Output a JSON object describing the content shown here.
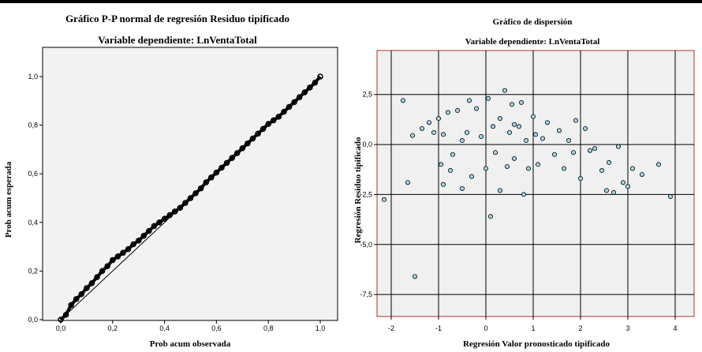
{
  "chart_data": [
    {
      "type": "line",
      "title": "Gráfico P-P normal de regresión Residuo tipificado",
      "subtitle": "Variable dependiente: LnVentaTotal",
      "xlabel": "Prob acum observada",
      "ylabel": "Prob acum esperada",
      "xlim": [
        0.0,
        1.0
      ],
      "ylim": [
        0.0,
        1.0
      ],
      "x_ticks": [
        "0,0",
        "0,2",
        "0,4",
        "0,6",
        "0,8",
        "1,0"
      ],
      "y_ticks": [
        "0,0",
        "0,2",
        "0,4",
        "0,6",
        "0,8",
        "1,0"
      ],
      "grid": false,
      "series": [
        {
          "x": [
            0.0,
            1.0
          ],
          "y": [
            0.0,
            1.0
          ]
        },
        {
          "x": [
            0.0,
            0.02,
            0.04,
            0.06,
            0.08,
            0.1,
            0.12,
            0.14,
            0.16,
            0.18,
            0.2,
            0.22,
            0.24,
            0.26,
            0.28,
            0.3,
            0.32,
            0.34,
            0.36,
            0.38,
            0.4,
            0.42,
            0.44,
            0.46,
            0.48,
            0.5,
            0.52,
            0.54,
            0.56,
            0.58,
            0.6,
            0.62,
            0.64,
            0.66,
            0.68,
            0.7,
            0.72,
            0.74,
            0.76,
            0.78,
            0.8,
            0.82,
            0.84,
            0.86,
            0.88,
            0.9,
            0.92,
            0.94,
            0.96,
            0.98,
            1.0
          ],
          "y": [
            0.0,
            0.02,
            0.06,
            0.085,
            0.105,
            0.13,
            0.15,
            0.175,
            0.2,
            0.22,
            0.245,
            0.26,
            0.275,
            0.29,
            0.31,
            0.325,
            0.345,
            0.365,
            0.385,
            0.4,
            0.415,
            0.43,
            0.445,
            0.46,
            0.48,
            0.5,
            0.52,
            0.54,
            0.565,
            0.585,
            0.605,
            0.625,
            0.645,
            0.665,
            0.685,
            0.705,
            0.725,
            0.745,
            0.765,
            0.785,
            0.805,
            0.82,
            0.835,
            0.855,
            0.875,
            0.895,
            0.915,
            0.935,
            0.955,
            0.975,
            1.0
          ]
        }
      ]
    },
    {
      "type": "scatter",
      "title": "Gráfico de dispersión",
      "subtitle": "Variable dependiente: LnVentaTotal",
      "xlabel": "Regresión Valor pronosticado tipificado",
      "ylabel": "Regresión Residuo tipificado",
      "xlim": [
        -2.3,
        4.4
      ],
      "ylim": [
        -8.6,
        4.7
      ],
      "x_ticks": [
        "-2",
        "-1",
        "0",
        "1",
        "2",
        "3",
        "4"
      ],
      "y_ticks": [
        "2,5",
        "0,0",
        "-2,5",
        "-5,0",
        "-7,5"
      ],
      "grid": true,
      "series": [
        {
          "points": [
            [
              -2.15,
              -2.75
            ],
            [
              -1.75,
              2.2
            ],
            [
              -1.55,
              0.45
            ],
            [
              -1.5,
              -6.6
            ],
            [
              -1.35,
              0.8
            ],
            [
              -1.2,
              1.1
            ],
            [
              -1.1,
              0.6
            ],
            [
              -1.0,
              1.3
            ],
            [
              -0.95,
              -1.0
            ],
            [
              -0.9,
              0.5
            ],
            [
              -0.8,
              1.6
            ],
            [
              -0.75,
              -1.3
            ],
            [
              -0.6,
              1.7
            ],
            [
              -0.5,
              0.2
            ],
            [
              -0.35,
              2.2
            ],
            [
              -0.3,
              -1.6
            ],
            [
              -0.2,
              1.8
            ],
            [
              -0.1,
              0.4
            ],
            [
              0.0,
              -1.2
            ],
            [
              0.05,
              2.3
            ],
            [
              0.1,
              -3.6
            ],
            [
              0.15,
              0.9
            ],
            [
              0.3,
              1.3
            ],
            [
              0.4,
              2.7
            ],
            [
              0.45,
              -1.1
            ],
            [
              0.5,
              0.6
            ],
            [
              0.55,
              2.0
            ],
            [
              0.6,
              -0.7
            ],
            [
              0.7,
              0.9
            ],
            [
              0.75,
              2.1
            ],
            [
              0.85,
              0.2
            ],
            [
              0.9,
              -1.2
            ],
            [
              1.0,
              1.4
            ],
            [
              1.05,
              0.5
            ],
            [
              1.1,
              -1.0
            ],
            [
              1.2,
              0.3
            ],
            [
              1.3,
              1.1
            ],
            [
              1.45,
              -0.5
            ],
            [
              1.55,
              0.7
            ],
            [
              1.65,
              -1.2
            ],
            [
              1.75,
              0.2
            ],
            [
              1.85,
              -0.4
            ],
            [
              1.9,
              1.2
            ],
            [
              2.0,
              -1.7
            ],
            [
              2.1,
              0.8
            ],
            [
              2.2,
              -0.3
            ],
            [
              2.3,
              -0.2
            ],
            [
              2.45,
              -1.3
            ],
            [
              2.55,
              -2.3
            ],
            [
              2.6,
              -0.9
            ],
            [
              2.8,
              -0.1
            ],
            [
              2.9,
              -1.9
            ],
            [
              3.0,
              -2.1
            ],
            [
              3.1,
              -1.2
            ],
            [
              3.3,
              -1.5
            ],
            [
              3.65,
              -1.0
            ],
            [
              3.9,
              -2.6
            ],
            [
              -0.5,
              -2.2
            ],
            [
              -0.9,
              -2.0
            ],
            [
              -1.65,
              -1.9
            ],
            [
              0.3,
              -2.3
            ],
            [
              0.8,
              -2.5
            ],
            [
              2.7,
              -2.4
            ],
            [
              -0.7,
              -0.5
            ],
            [
              -0.4,
              0.6
            ],
            [
              0.2,
              -0.4
            ],
            [
              0.6,
              1.0
            ]
          ]
        }
      ]
    }
  ]
}
